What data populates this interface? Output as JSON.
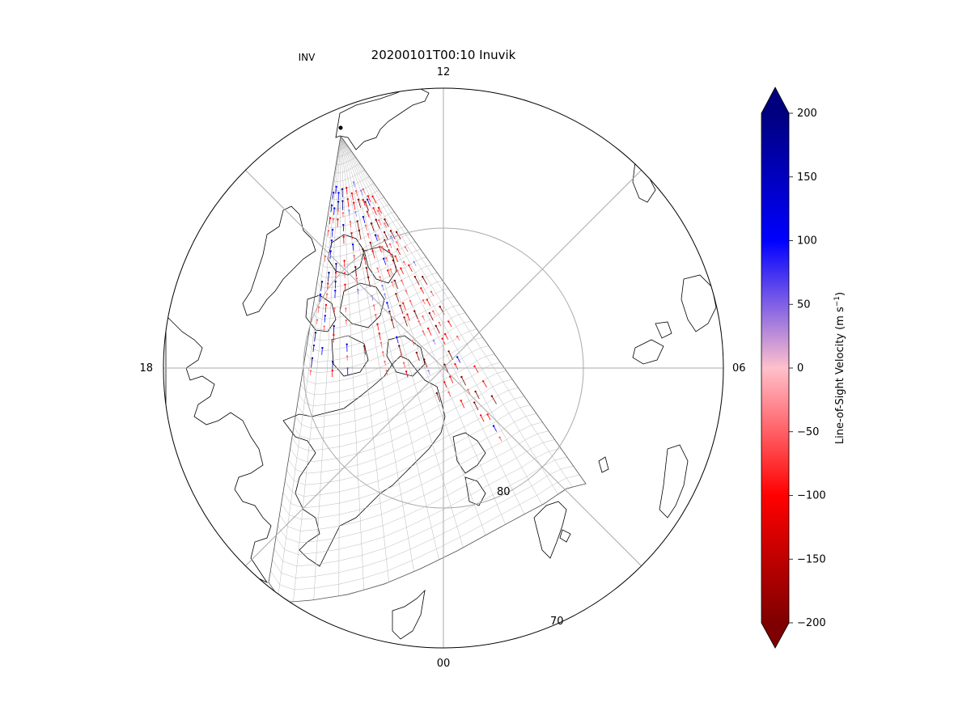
{
  "title": "20200101T00:10  Inuvik",
  "station_code": "INV",
  "hour_labels": {
    "top": "12",
    "right": "06",
    "bottom": "00",
    "left": "18"
  },
  "latitude_labels": [
    "80",
    "70"
  ],
  "colorbar": {
    "label": "Line-of-Sight Velocity (m s",
    "label_exponent": "−1",
    "label_suffix": ")",
    "range": [
      -200,
      200
    ],
    "ticks": [
      "200",
      "150",
      "100",
      "50",
      "0",
      "−50",
      "−100",
      "−150",
      "−200"
    ],
    "colors": {
      "high": "#00007f",
      "mid_high": "#0000ff",
      "zero": "#ffc0cb",
      "mid_low": "#ff0000",
      "low": "#7f0000"
    }
  },
  "colors": {
    "coast": "#000000",
    "grid": "#aaaaaa",
    "fov_grid": "#b0b0b0",
    "fov_edge": "#555555"
  }
}
